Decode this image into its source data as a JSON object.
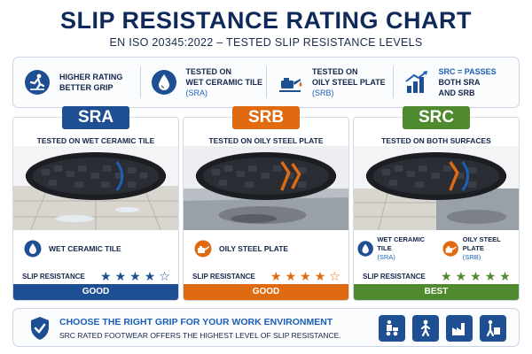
{
  "header": {
    "title": "SLIP RESISTANCE RATING CHART",
    "subtitle": "EN ISO 20345:2022 – TESTED SLIP RESISTANCE LEVELS"
  },
  "info_bar": [
    {
      "icon": "slipping-person-icon",
      "line1": "HIGHER RATING",
      "line2": "BETTER GRIP",
      "sub": ""
    },
    {
      "icon": "water-drop-icon",
      "line1": "TESTED ON",
      "line2": "WET CERAMIC TILE",
      "sub": "(SRA)"
    },
    {
      "icon": "oil-can-icon",
      "line1": "TESTED ON",
      "line2": "OILY STEEL PLATE",
      "sub": "(SRB)"
    },
    {
      "icon": "rising-bar-chart-icon",
      "line1": "SRC = PASSES",
      "line2": "BOTH SRA",
      "sub": "AND SRB"
    }
  ],
  "columns": [
    {
      "code": "SRA",
      "color": "#1f4f93",
      "tested_on": "TESTED ON WET CERAMIC TILE",
      "surface_label": "WET CERAMIC TILE",
      "rating_label": "SLIP RESISTANCE",
      "stars_filled": 4,
      "stars_total": 5,
      "grade": "GOOD"
    },
    {
      "code": "SRB",
      "color": "#e06a10",
      "tested_on": "TESTED ON OILY STEEL PLATE",
      "surface_label": "OILY STEEL PLATE",
      "rating_label": "SLIP RESISTANCE",
      "stars_filled": 4,
      "stars_total": 5,
      "grade": "GOOD"
    },
    {
      "code": "SRC",
      "color": "#4f8a2e",
      "tested_on": "TESTED ON BOTH SURFACES",
      "surface_label_a": "WET CERAMIC TILE",
      "surface_sub_a": "(SRA)",
      "surface_label_b": "OILY STEEL PLATE",
      "surface_sub_b": "(SRB)",
      "rating_label": "SLIP RESISTANCE",
      "stars_filled": 5,
      "stars_total": 5,
      "grade": "BEST"
    }
  ],
  "bottom_bar": {
    "title": "CHOOSE THE RIGHT GRIP FOR YOUR WORK ENVIRONMENT",
    "subtitle": "SRC RATED FOOTWEAR OFFERS THE HIGHEST LEVEL OF SLIP RESISTANCE.",
    "icons": [
      "forklift-worker-icon",
      "walking-worker-icon",
      "factory-icon",
      "warehouse-worker-icon"
    ]
  },
  "colors": {
    "navy": "#0f2a5a",
    "sra_blue": "#1f4f93",
    "srb_orange": "#e06a10",
    "src_green": "#4f8a2e",
    "accent_blue": "#1c5fb5"
  }
}
